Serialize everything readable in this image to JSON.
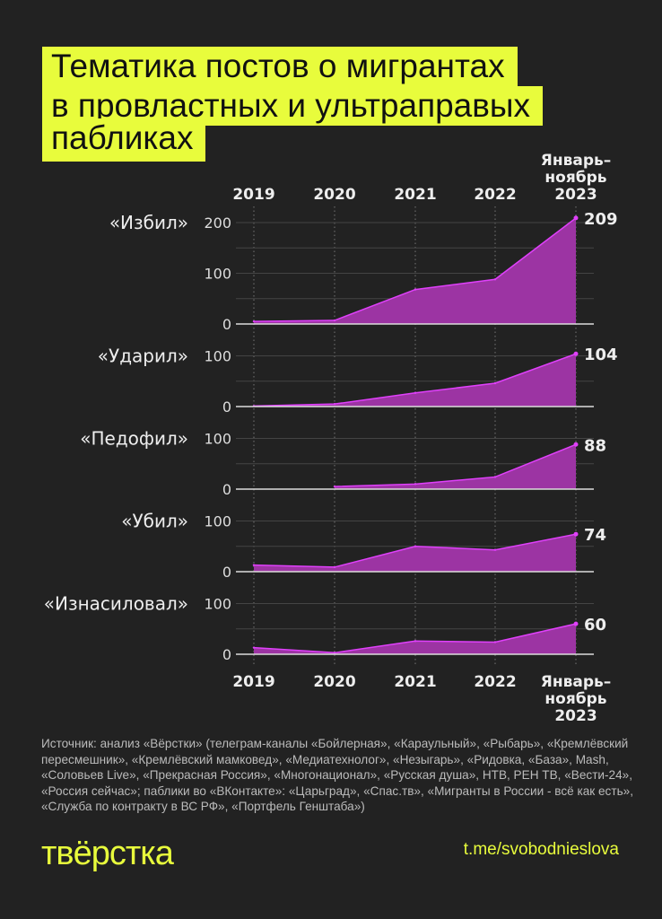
{
  "title_lines": [
    "Тематика постов о мигрантах",
    "в провластных и ультраправых",
    "пабликах"
  ],
  "chart_data": {
    "type": "area",
    "x": [
      "2019",
      "2020",
      "2021",
      "2022",
      "Январь–ноябрь 2023"
    ],
    "x_tick_labels": [
      [
        "2019"
      ],
      [
        "2020"
      ],
      [
        "2021"
      ],
      [
        "2022"
      ],
      [
        "Январь–",
        "ноябрь",
        "2023"
      ]
    ],
    "grid": true,
    "colors": {
      "fill": "#9c34a3",
      "line": "#e040fb",
      "accent": "#e8fc3c"
    },
    "panels": [
      {
        "name": "«Избил»",
        "yticks": [
          0,
          100,
          200
        ],
        "ylim": [
          0,
          210
        ],
        "values": [
          5,
          7,
          68,
          88,
          209
        ],
        "end_label": "209"
      },
      {
        "name": "«Ударил»",
        "yticks": [
          0,
          100
        ],
        "ylim": [
          0,
          105
        ],
        "values": [
          1,
          5,
          27,
          46,
          104
        ],
        "end_label": "104"
      },
      {
        "name": "«Педофил»",
        "yticks": [
          0,
          100
        ],
        "ylim": [
          0,
          105
        ],
        "values": [
          null,
          5,
          10,
          24,
          88
        ],
        "end_label": "88"
      },
      {
        "name": "«Убил»",
        "yticks": [
          0,
          100
        ],
        "ylim": [
          0,
          105
        ],
        "values": [
          13,
          9,
          50,
          43,
          74
        ],
        "end_label": "74"
      },
      {
        "name": "«Изнасиловал»",
        "yticks": [
          0,
          100
        ],
        "ylim": [
          0,
          105
        ],
        "values": [
          13,
          3,
          26,
          24,
          60
        ],
        "end_label": "60"
      }
    ]
  },
  "source": "Источник: анализ «Вёрстки» (телеграм-каналы «Бойлерная», «Караульный», «Рыбарь», «Кремлёвский пересмешник», «Кремлёвский мамковед», «Медиатехнолог», «Незыгарь», «Ридовка, «База», Mash, «Соловьев Live», «Прекрасная Россия», «Многонационал», «Русская душа», НТВ, РЕН ТВ, «Вести-24», «Россия сейчас»; паблики во «ВКонтакте»: «Царьград», «Спас.тв», «Мигранты в России - всё как есть», «Служба по контракту в ВС РФ», «Портфель Генштаба»)",
  "logo": "верстка",
  "link": "t.me/svobodnieslova"
}
